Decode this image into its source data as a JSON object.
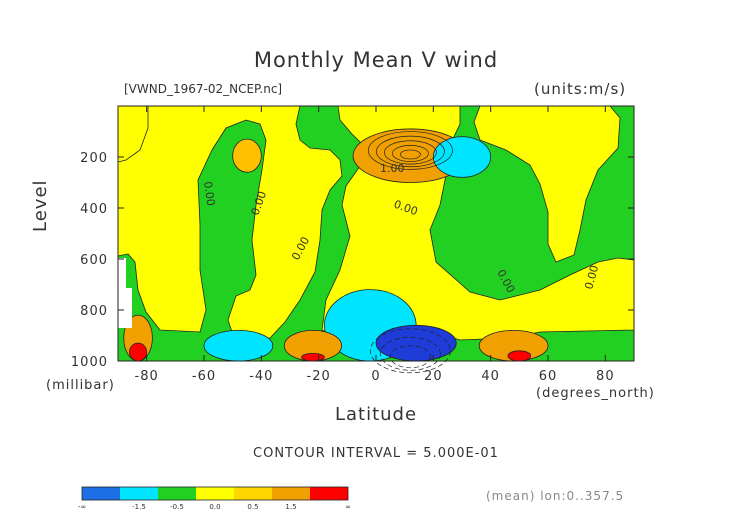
{
  "chart_data": {
    "type": "heatmap",
    "title": "Monthly Mean V wind",
    "file_label": "[VWND_1967-02_NCEP.nc]",
    "units_label": "(units:m/s)",
    "xlabel": "Latitude",
    "x_units": "(degrees_north)",
    "ylabel": "Level",
    "y_units": "(millibar)",
    "xlim": [
      -90,
      90
    ],
    "ylim": [
      1000,
      0
    ],
    "x_ticks": [
      -80,
      -60,
      -40,
      -20,
      0,
      20,
      40,
      60,
      80
    ],
    "y_ticks": [
      200,
      400,
      600,
      800,
      1000
    ],
    "contour_interval_text": "CONTOUR INTERVAL = 5.000E-01",
    "footer_text": "(mean) lon:0..357.5",
    "contour_labels": [
      "0.00",
      "0.00",
      "0.00",
      "1.00",
      "0.00",
      "0.00",
      "0.00"
    ],
    "colorbar": {
      "labels": [
        "-∞",
        "-1.5",
        "-0.5",
        "0.0",
        "0.5",
        "1.5",
        "∞"
      ],
      "colors": [
        "#1e6fe6",
        "#00e5ff",
        "#22d022",
        "#ffff00",
        "#ffd700",
        "#f0a000",
        "#ff0000"
      ]
    },
    "fill_colors": {
      "strong_negative": "#1e3cd8",
      "negative": "#00e5ff",
      "near_zero": "#22d022",
      "weak_positive": "#ffff00",
      "positive": "#ffc000",
      "strong_positive": "#f0a000",
      "max_positive": "#ff0000"
    },
    "regions": [
      {
        "band": "max_positive",
        "x": [
          -2,
          26
        ],
        "y": [
          120,
          260
        ]
      },
      {
        "band": "strong_positive",
        "x": [
          -8,
          32
        ],
        "y": [
          90,
          300
        ]
      },
      {
        "band": "negative",
        "x": [
          20,
          40
        ],
        "y": [
          120,
          280
        ]
      },
      {
        "band": "negative",
        "x": [
          -18,
          14
        ],
        "y": [
          720,
          1000
        ]
      },
      {
        "band": "strong_negative",
        "x": [
          0,
          28
        ],
        "y": [
          860,
          1000
        ]
      },
      {
        "band": "strong_negative",
        "x": [
          -56,
          -40
        ],
        "y": [
          930,
          1000
        ]
      },
      {
        "band": "negative",
        "x": [
          -60,
          -36
        ],
        "y": [
          880,
          1000
        ]
      },
      {
        "band": "strong_positive",
        "x": [
          -32,
          -12
        ],
        "y": [
          880,
          1000
        ]
      },
      {
        "band": "max_positive",
        "x": [
          -26,
          -18
        ],
        "y": [
          970,
          1000
        ]
      },
      {
        "band": "strong_positive",
        "x": [
          36,
          60
        ],
        "y": [
          880,
          1000
        ]
      },
      {
        "band": "max_positive",
        "x": [
          46,
          54
        ],
        "y": [
          960,
          1000
        ]
      },
      {
        "band": "strong_positive",
        "x": [
          -88,
          -78
        ],
        "y": [
          820,
          1000
        ]
      },
      {
        "band": "max_positive",
        "x": [
          -86,
          -80
        ],
        "y": [
          930,
          1000
        ]
      },
      {
        "band": "positive",
        "x": [
          -50,
          -40
        ],
        "y": [
          130,
          260
        ]
      }
    ]
  }
}
